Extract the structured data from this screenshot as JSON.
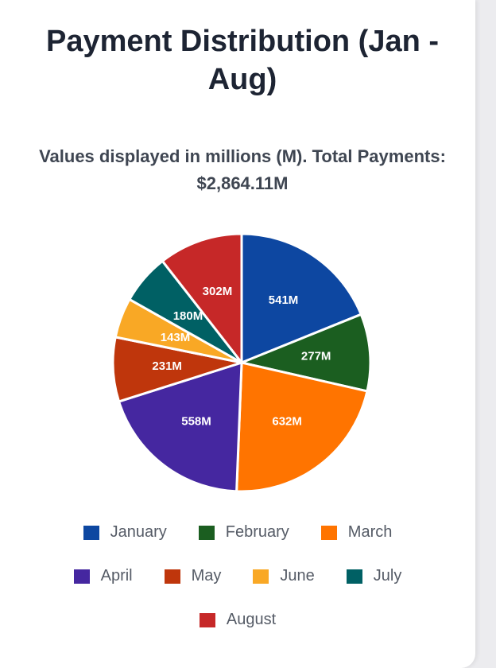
{
  "chart_data": {
    "type": "pie",
    "title": "Payment Distribution (Jan - Aug)",
    "subtitle": "Values displayed in millions (M). Total Payments: $2,864.11M",
    "legend_position": "bottom",
    "categories": [
      "January",
      "February",
      "March",
      "April",
      "May",
      "June",
      "July",
      "August"
    ],
    "values": [
      541,
      277,
      632,
      558,
      231,
      143,
      180,
      302
    ],
    "labels": [
      "541M",
      "277M",
      "632M",
      "558M",
      "231M",
      "143M",
      "180M",
      "302M"
    ],
    "colors": [
      "#0d47a1",
      "#1b5e20",
      "#ff7400",
      "#4527a0",
      "#bf360c",
      "#f9a825",
      "#006064",
      "#c62828"
    ]
  }
}
